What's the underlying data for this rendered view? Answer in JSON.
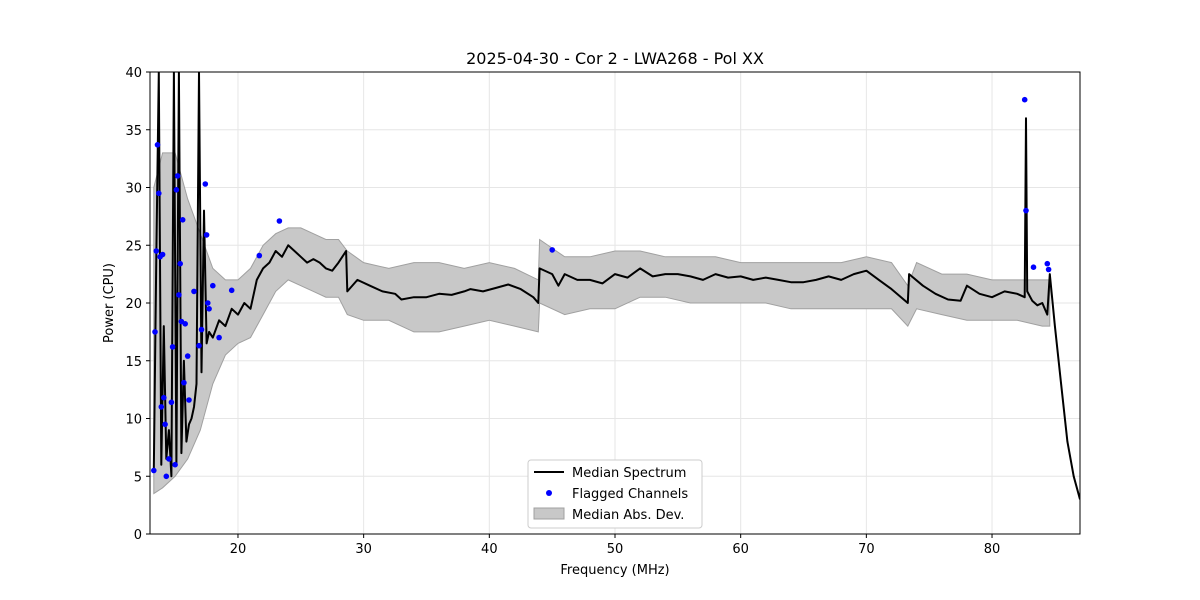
{
  "chart_data": {
    "type": "line",
    "title": "2025-04-30 - Cor 2 - LWA268 - Pol XX",
    "xlabel": "Frequency (MHz)",
    "ylabel": "Power (CPU)",
    "xlim": [
      13,
      87
    ],
    "ylim": [
      0,
      40
    ],
    "xticks": [
      20,
      30,
      40,
      50,
      60,
      70,
      80
    ],
    "yticks": [
      0,
      5,
      10,
      15,
      20,
      25,
      30,
      35,
      40
    ],
    "grid": true,
    "legend_position": "bottom-center",
    "legend": [
      "Median Spectrum",
      "Flagged Channels",
      "Median Abs. Dev."
    ],
    "colors": {
      "median": "#000000",
      "flagged": "#0000ff",
      "mad_fill": "#c8c8c8",
      "mad_edge": "#a0a0a0",
      "grid": "#e6e6e6"
    },
    "series": [
      {
        "name": "Median Spectrum",
        "x": [
          13.3,
          13.5,
          13.7,
          13.9,
          14.1,
          14.3,
          14.5,
          14.7,
          14.9,
          15.1,
          15.3,
          15.5,
          15.7,
          15.9,
          16.1,
          16.3,
          16.5,
          16.7,
          16.9,
          17.1,
          17.3,
          17.5,
          17.7,
          18.0,
          18.5,
          19.0,
          19.5,
          20.0,
          20.5,
          21.0,
          21.5,
          22.0,
          22.5,
          23.0,
          23.5,
          24.0,
          24.5,
          25.0,
          25.5,
          26.0,
          26.5,
          27.0,
          27.5,
          28.0,
          28.6,
          28.7,
          29.5,
          30.5,
          31.5,
          32.5,
          33.0,
          34.0,
          35.0,
          36.0,
          37.0,
          38.0,
          38.5,
          39.5,
          40.5,
          41.5,
          42.5,
          43.5,
          43.9,
          44.0,
          45.0,
          45.5,
          46.0,
          47.0,
          48.0,
          49.0,
          50.0,
          51.0,
          52.0,
          53.0,
          54.0,
          55.0,
          56.0,
          57.0,
          58.0,
          59.0,
          60.0,
          61.0,
          62.0,
          63.0,
          64.0,
          65.0,
          66.0,
          67.0,
          68.0,
          69.0,
          70.0,
          71.0,
          72.0,
          73.3,
          73.4,
          74.5,
          75.5,
          76.5,
          77.5,
          78.0,
          79.0,
          80.0,
          81.0,
          82.0,
          82.6,
          82.7,
          82.8,
          83.2,
          83.6,
          84.0,
          84.4,
          84.6,
          85.0,
          85.5,
          86.0,
          86.5,
          87.0
        ],
        "y": [
          5.5,
          24.0,
          40.0,
          6.0,
          18.0,
          6.5,
          9.0,
          5.0,
          40.0,
          6.0,
          40.0,
          7.0,
          15.0,
          8.0,
          9.5,
          10.0,
          11.0,
          13.0,
          40.0,
          14.0,
          28.0,
          16.5,
          17.5,
          17.0,
          18.5,
          18.0,
          19.5,
          19.0,
          20.0,
          19.5,
          22.0,
          23.0,
          23.5,
          24.5,
          24.0,
          25.0,
          24.5,
          24.0,
          23.5,
          23.8,
          23.5,
          23.0,
          22.8,
          23.5,
          24.5,
          21.0,
          22.0,
          21.5,
          21.0,
          20.8,
          20.3,
          20.5,
          20.5,
          20.8,
          20.7,
          21.0,
          21.2,
          21.0,
          21.3,
          21.6,
          21.2,
          20.5,
          20.0,
          23.0,
          22.5,
          21.5,
          22.5,
          22.0,
          22.0,
          21.7,
          22.5,
          22.2,
          23.0,
          22.3,
          22.5,
          22.5,
          22.3,
          22.0,
          22.5,
          22.2,
          22.3,
          22.0,
          22.2,
          22.0,
          21.8,
          21.8,
          22.0,
          22.3,
          22.0,
          22.5,
          22.8,
          22.0,
          21.2,
          20.0,
          22.5,
          21.5,
          20.8,
          20.3,
          20.2,
          21.5,
          20.8,
          20.5,
          21.0,
          20.8,
          20.5,
          36.0,
          21.0,
          20.2,
          19.8,
          20.0,
          19.0,
          22.5,
          18.0,
          13.0,
          8.0,
          5.0,
          3.0
        ]
      },
      {
        "name": "Median Abs. Dev.",
        "x": [
          13.3,
          14.0,
          15.0,
          16.0,
          17.0,
          18.0,
          19.0,
          20.0,
          21.0,
          22.0,
          23.0,
          24.0,
          25.0,
          26.0,
          27.0,
          28.0,
          28.7,
          30.0,
          32.0,
          34.0,
          36.0,
          38.0,
          40.0,
          42.0,
          43.9,
          44.0,
          46.0,
          48.0,
          50.0,
          52.0,
          54.0,
          56.0,
          58.0,
          60.0,
          62.0,
          64.0,
          66.0,
          68.0,
          70.0,
          72.0,
          73.3,
          74.0,
          76.0,
          78.0,
          80.0,
          82.0,
          84.0,
          84.6
        ],
        "upper": [
          30.0,
          33.0,
          33.0,
          29.0,
          26.0,
          23.0,
          22.0,
          22.0,
          23.0,
          25.0,
          26.0,
          26.5,
          26.5,
          26.0,
          25.5,
          25.5,
          24.5,
          23.5,
          23.0,
          23.5,
          23.5,
          23.0,
          23.5,
          23.0,
          22.0,
          25.5,
          24.0,
          24.0,
          24.5,
          24.5,
          24.0,
          24.0,
          24.0,
          23.5,
          23.5,
          23.5,
          23.5,
          23.5,
          24.0,
          23.5,
          21.5,
          23.5,
          22.5,
          22.5,
          22.0,
          22.0,
          22.0,
          22.0
        ],
        "lower": [
          3.5,
          4.0,
          5.0,
          6.5,
          9.0,
          13.0,
          15.5,
          16.5,
          17.0,
          19.0,
          21.0,
          22.0,
          21.5,
          21.0,
          20.5,
          20.5,
          19.0,
          18.5,
          18.5,
          17.5,
          17.5,
          18.0,
          18.5,
          18.0,
          17.5,
          20.0,
          19.0,
          19.5,
          19.5,
          20.5,
          20.5,
          20.0,
          20.0,
          20.0,
          20.0,
          19.5,
          19.5,
          19.5,
          19.5,
          19.5,
          18.0,
          19.5,
          19.0,
          18.5,
          18.5,
          18.5,
          18.0,
          18.0
        ]
      }
    ],
    "flagged_channels": {
      "name": "Flagged Channels",
      "x": [
        13.3,
        13.4,
        13.5,
        13.6,
        13.7,
        13.8,
        13.9,
        14.0,
        14.1,
        14.2,
        14.3,
        14.5,
        14.7,
        14.8,
        15.0,
        15.1,
        15.2,
        15.3,
        15.4,
        15.5,
        15.6,
        15.7,
        15.8,
        16.0,
        16.1,
        16.5,
        16.9,
        17.1,
        17.4,
        17.5,
        17.6,
        17.7,
        18.0,
        18.5,
        19.5,
        21.7,
        23.3,
        45.0,
        82.6,
        82.7,
        83.3,
        84.4,
        84.5
      ],
      "y": [
        5.5,
        17.5,
        24.5,
        33.7,
        29.5,
        24.0,
        11.0,
        24.2,
        11.8,
        9.5,
        5.0,
        6.5,
        11.4,
        16.2,
        6.0,
        29.8,
        31.0,
        20.7,
        23.4,
        18.4,
        27.2,
        13.1,
        18.2,
        15.4,
        11.6,
        21.0,
        16.3,
        17.7,
        30.3,
        25.9,
        20.0,
        19.5,
        21.5,
        17.0,
        21.1,
        24.1,
        27.1,
        24.6,
        37.6,
        28.0,
        23.1,
        23.4,
        22.9
      ]
    }
  }
}
